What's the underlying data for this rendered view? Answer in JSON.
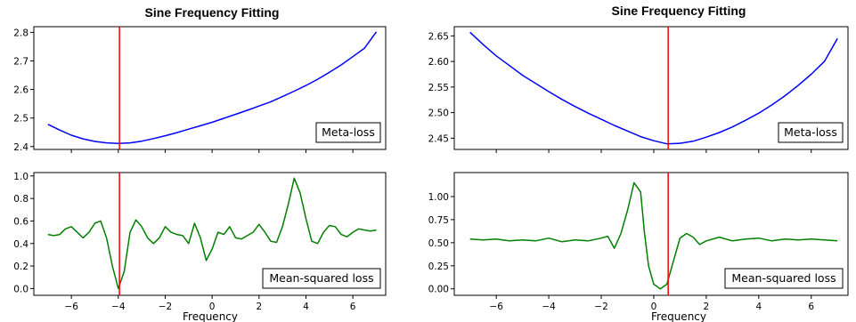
{
  "chart_data": [
    {
      "type": "line",
      "title": "Sine Frequency Fitting",
      "xlabel": "Frequency",
      "xlim": [
        -7.6,
        7.4
      ],
      "xticks": [
        -6,
        -4,
        -2,
        0,
        2,
        4,
        6
      ],
      "xtick_labels": [
        "−6",
        "−4",
        "−2",
        "0",
        "2",
        "4",
        "6"
      ],
      "subplots": [
        {
          "ylim": [
            2.39,
            2.82
          ],
          "yticks": [
            2.4,
            2.5,
            2.6,
            2.7,
            2.8
          ],
          "ytick_labels": [
            "2.4",
            "2.5",
            "2.6",
            "2.7",
            "2.8"
          ],
          "legend": "Meta-loss",
          "legend_position": "lower-right",
          "series": [
            {
              "name": "Meta-loss",
              "color": "#0000ff",
              "x": [
                -7,
                -6.5,
                -6,
                -5.5,
                -5,
                -4.5,
                -4,
                -3.5,
                -3,
                -2.5,
                -2,
                -1.5,
                -1,
                -0.5,
                0,
                0.5,
                1,
                1.5,
                2,
                2.5,
                3,
                3.5,
                4,
                4.5,
                5,
                5.5,
                6,
                6.5,
                7
              ],
              "y": [
                2.478,
                2.458,
                2.44,
                2.427,
                2.418,
                2.413,
                2.411,
                2.413,
                2.419,
                2.428,
                2.438,
                2.449,
                2.461,
                2.473,
                2.485,
                2.499,
                2.513,
                2.527,
                2.542,
                2.557,
                2.575,
                2.594,
                2.614,
                2.636,
                2.66,
                2.686,
                2.715,
                2.745,
                2.802
              ]
            }
          ],
          "vline": {
            "x": -3.95,
            "color": "#ff0000"
          }
        },
        {
          "ylim": [
            -0.06,
            1.03
          ],
          "yticks": [
            0.0,
            0.2,
            0.4,
            0.6,
            0.8,
            1.0
          ],
          "ytick_labels": [
            "0.0",
            "0.2",
            "0.4",
            "0.6",
            "0.8",
            "1.0"
          ],
          "legend": "Mean-squared loss",
          "legend_position": "lower-right",
          "series": [
            {
              "name": "Mean-squared loss",
              "color": "#008000",
              "x": [
                -7,
                -6.75,
                -6.5,
                -6.25,
                -6,
                -5.75,
                -5.5,
                -5.25,
                -5,
                -4.75,
                -4.5,
                -4.25,
                -4,
                -3.75,
                -3.5,
                -3.25,
                -3,
                -2.75,
                -2.5,
                -2.25,
                -2,
                -1.75,
                -1.5,
                -1.25,
                -1,
                -0.75,
                -0.5,
                -0.25,
                0,
                0.25,
                0.5,
                0.75,
                1,
                1.25,
                1.5,
                1.75,
                2,
                2.25,
                2.5,
                2.75,
                3,
                3.25,
                3.5,
                3.75,
                4,
                4.25,
                4.5,
                4.75,
                5,
                5.25,
                5.5,
                5.75,
                6,
                6.25,
                6.5,
                6.75,
                7
              ],
              "y": [
                0.48,
                0.47,
                0.48,
                0.53,
                0.55,
                0.5,
                0.45,
                0.5,
                0.58,
                0.6,
                0.45,
                0.2,
                0.0,
                0.15,
                0.5,
                0.61,
                0.55,
                0.45,
                0.4,
                0.45,
                0.55,
                0.5,
                0.48,
                0.47,
                0.4,
                0.58,
                0.45,
                0.25,
                0.35,
                0.5,
                0.48,
                0.55,
                0.45,
                0.44,
                0.47,
                0.5,
                0.57,
                0.5,
                0.42,
                0.41,
                0.55,
                0.75,
                0.98,
                0.85,
                0.62,
                0.42,
                0.4,
                0.5,
                0.56,
                0.55,
                0.48,
                0.46,
                0.5,
                0.53,
                0.52,
                0.51,
                0.52
              ]
            }
          ],
          "vline": {
            "x": -3.95,
            "color": "#ff0000"
          }
        }
      ]
    },
    {
      "type": "line",
      "title": "Sine Frequency Fitting",
      "xlabel": "Frequency",
      "xlim": [
        -7.6,
        7.4
      ],
      "xticks": [
        -6,
        -4,
        -2,
        0,
        2,
        4,
        6
      ],
      "xtick_labels": [
        "−6",
        "−4",
        "−2",
        "0",
        "2",
        "4",
        "6"
      ],
      "subplots": [
        {
          "ylim": [
            2.428,
            2.668
          ],
          "yticks": [
            2.45,
            2.5,
            2.55,
            2.6,
            2.65
          ],
          "ytick_labels": [
            "2.45",
            "2.50",
            "2.55",
            "2.60",
            "2.65"
          ],
          "legend": "Meta-loss",
          "legend_position": "lower-right",
          "series": [
            {
              "name": "Meta-loss",
              "color": "#0000ff",
              "x": [
                -7,
                -6.5,
                -6,
                -5.5,
                -5,
                -4.5,
                -4,
                -3.5,
                -3,
                -2.5,
                -2,
                -1.5,
                -1,
                -0.5,
                0,
                0.5,
                1,
                1.5,
                2,
                2.5,
                3,
                3.5,
                4,
                4.5,
                5,
                5.5,
                6,
                6.5,
                7
              ],
              "y": [
                2.657,
                2.633,
                2.611,
                2.592,
                2.573,
                2.557,
                2.541,
                2.526,
                2.512,
                2.499,
                2.487,
                2.475,
                2.464,
                2.453,
                2.445,
                2.439,
                2.44,
                2.444,
                2.452,
                2.461,
                2.472,
                2.485,
                2.499,
                2.515,
                2.533,
                2.553,
                2.575,
                2.6,
                2.645
              ]
            }
          ],
          "vline": {
            "x": 0.55,
            "color": "#ff0000"
          }
        },
        {
          "ylim": [
            -0.07,
            1.26
          ],
          "yticks": [
            0.0,
            0.25,
            0.5,
            0.75,
            1.0
          ],
          "ytick_labels": [
            "0.00",
            "0.25",
            "0.50",
            "0.75",
            "1.00"
          ],
          "legend": "Mean-squared loss",
          "legend_position": "lower-right",
          "series": [
            {
              "name": "Mean-squared loss",
              "color": "#008000",
              "x": [
                -7,
                -6.5,
                -6,
                -5.5,
                -5,
                -4.5,
                -4,
                -3.5,
                -3,
                -2.5,
                -2,
                -1.75,
                -1.5,
                -1.25,
                -1,
                -0.75,
                -0.5,
                -0.35,
                -0.2,
                0,
                0.25,
                0.5,
                0.75,
                1,
                1.25,
                1.5,
                1.75,
                2,
                2.5,
                3,
                3.5,
                4,
                4.5,
                5,
                5.5,
                6,
                6.5,
                7
              ],
              "y": [
                0.54,
                0.53,
                0.54,
                0.52,
                0.53,
                0.52,
                0.55,
                0.51,
                0.53,
                0.52,
                0.55,
                0.57,
                0.44,
                0.6,
                0.85,
                1.15,
                1.05,
                0.6,
                0.25,
                0.05,
                0.0,
                0.05,
                0.3,
                0.55,
                0.6,
                0.56,
                0.48,
                0.52,
                0.56,
                0.52,
                0.54,
                0.55,
                0.52,
                0.54,
                0.53,
                0.54,
                0.53,
                0.52
              ]
            }
          ],
          "vline": {
            "x": 0.55,
            "color": "#ff0000"
          }
        }
      ]
    }
  ]
}
